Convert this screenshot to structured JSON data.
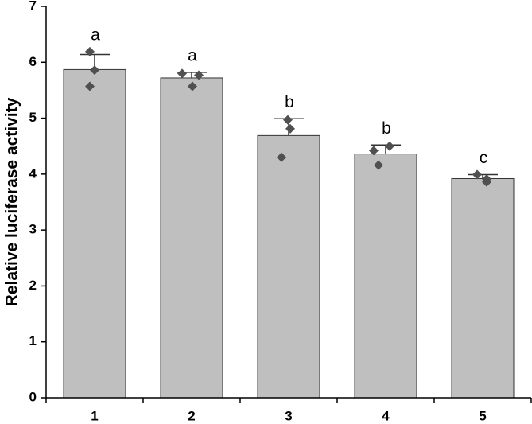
{
  "chart_data": {
    "type": "bar",
    "y_label": "Relative luciferase activity",
    "categories": [
      "1",
      "2",
      "3",
      "4",
      "5"
    ],
    "values": [
      5.87,
      5.72,
      4.69,
      4.36,
      3.92
    ],
    "errors": [
      0.27,
      0.1,
      0.3,
      0.16,
      0.07
    ],
    "points": [
      [
        6.19,
        5.86,
        5.57
      ],
      [
        5.8,
        5.77,
        5.57
      ],
      [
        4.97,
        4.81,
        4.3
      ],
      [
        4.42,
        4.5,
        4.16
      ],
      [
        3.99,
        3.91,
        3.86
      ]
    ],
    "annotations": [
      "a",
      "a",
      "b",
      "b",
      "c"
    ],
    "color": "#bfbfbf",
    "point_color": "#505050",
    "ylim": [
      0,
      7
    ],
    "yticks": [
      0,
      1,
      2,
      3,
      4,
      5,
      6,
      7
    ]
  }
}
